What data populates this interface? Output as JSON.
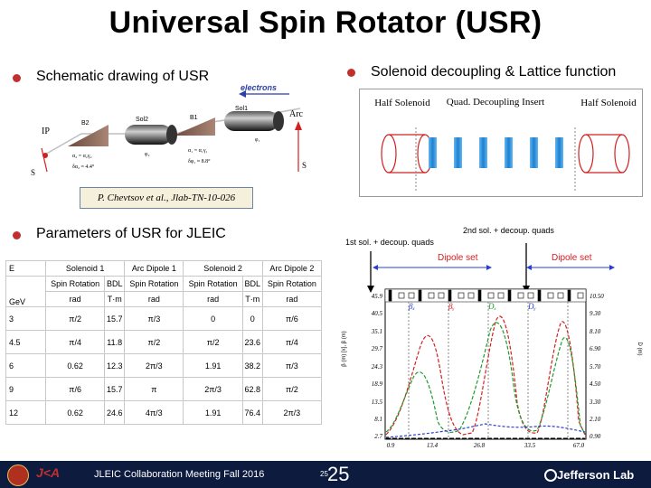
{
  "title": "Universal Spin Rotator (USR)",
  "left_heading": "Schematic drawing of USR",
  "right_heading": "Solenoid decoupling & Lattice function",
  "schematic": {
    "electrons": "electrons",
    "arc": "Arc",
    "ip": "IP",
    "b2": "B2",
    "sol2": "Sol2",
    "b1": "B1",
    "sol1": "Sol1",
    "eq_left_1": "α₂ = α₂γ₂",
    "eq_left_2": "δα₂ ≈ 4.4°",
    "eq_right_1": "α₁ = α₁γ₁",
    "eq_right_2": "δφ₁ ≈ 8.8°",
    "phi2": "φ₂",
    "phi1": "φ₁",
    "s_left": "S",
    "s_right": "S"
  },
  "citation": "P. Chevtsov et al., Jlab-TN-10-026",
  "decoupling": {
    "half_solenoid_left": "Half Solenoid",
    "quad_insert": "Quad. Decoupling Insert",
    "half_solenoid_right": "Half Solenoid"
  },
  "params_heading": "Parameters of USR for JLEIC",
  "table": {
    "group_headers": [
      "E",
      "Solenoid 1",
      "Arc Dipole 1",
      "Solenoid 2",
      "Arc Dipole 2"
    ],
    "sub_headers": [
      "Spin Rotation",
      "BDL",
      "Spin Rotation",
      "Spin Rotation",
      "BDL",
      "Spin Rotation"
    ],
    "unit_row": [
      "GeV",
      "rad",
      "T·m",
      "rad",
      "rad",
      "T·m",
      "rad"
    ],
    "rows": [
      [
        "3",
        "π/2",
        "15.7",
        "π/3",
        "0",
        "0",
        "π/6"
      ],
      [
        "4.5",
        "π/4",
        "11.8",
        "π/2",
        "π/2",
        "23.6",
        "π/4"
      ],
      [
        "6",
        "0.62",
        "12.3",
        "2π/3",
        "1.91",
        "38.2",
        "π/3"
      ],
      [
        "9",
        "π/6",
        "15.7",
        "π",
        "2π/3",
        "62.8",
        "π/2"
      ],
      [
        "12",
        "0.62",
        "24.6",
        "4π/3",
        "1.91",
        "76.4",
        "2π/3"
      ]
    ]
  },
  "lattice": {
    "label_2nd": "2nd sol. + decoup. quads",
    "label_1st": "1st sol. + decoup. quads",
    "dipole_set_1": "Dipole set",
    "dipole_set_2": "Dipole set",
    "left_axis_label": "β (m) [x], β (m)",
    "right_axis_label": "D (m)",
    "y_left_ticks": [
      "45.9",
      "40.5",
      "35.1",
      "29.7",
      "24.3",
      "18.9",
      "13.5",
      "8.1",
      "2.7"
    ],
    "y_right_ticks": [
      "10.50",
      "9.30",
      "8.10",
      "6.90",
      "5.70",
      "4.50",
      "3.30",
      "2.10",
      "0.90"
    ],
    "x_ticks": [
      "0.9",
      "13.4",
      "26.8",
      "33.5",
      "67.0"
    ],
    "beta_labels": [
      "βₓ",
      "βᵧ",
      "Dₓ",
      "Dᵧ"
    ],
    "colors": {
      "blue": "#2a3fd1",
      "red": "#d22020",
      "green": "#1f9b2c",
      "black": "#000000"
    }
  },
  "footer": {
    "meeting": "JLEIC Collaboration Meeting Fall 2016",
    "page_small": "25",
    "page_big": "25",
    "lab": "Jefferson Lab"
  }
}
